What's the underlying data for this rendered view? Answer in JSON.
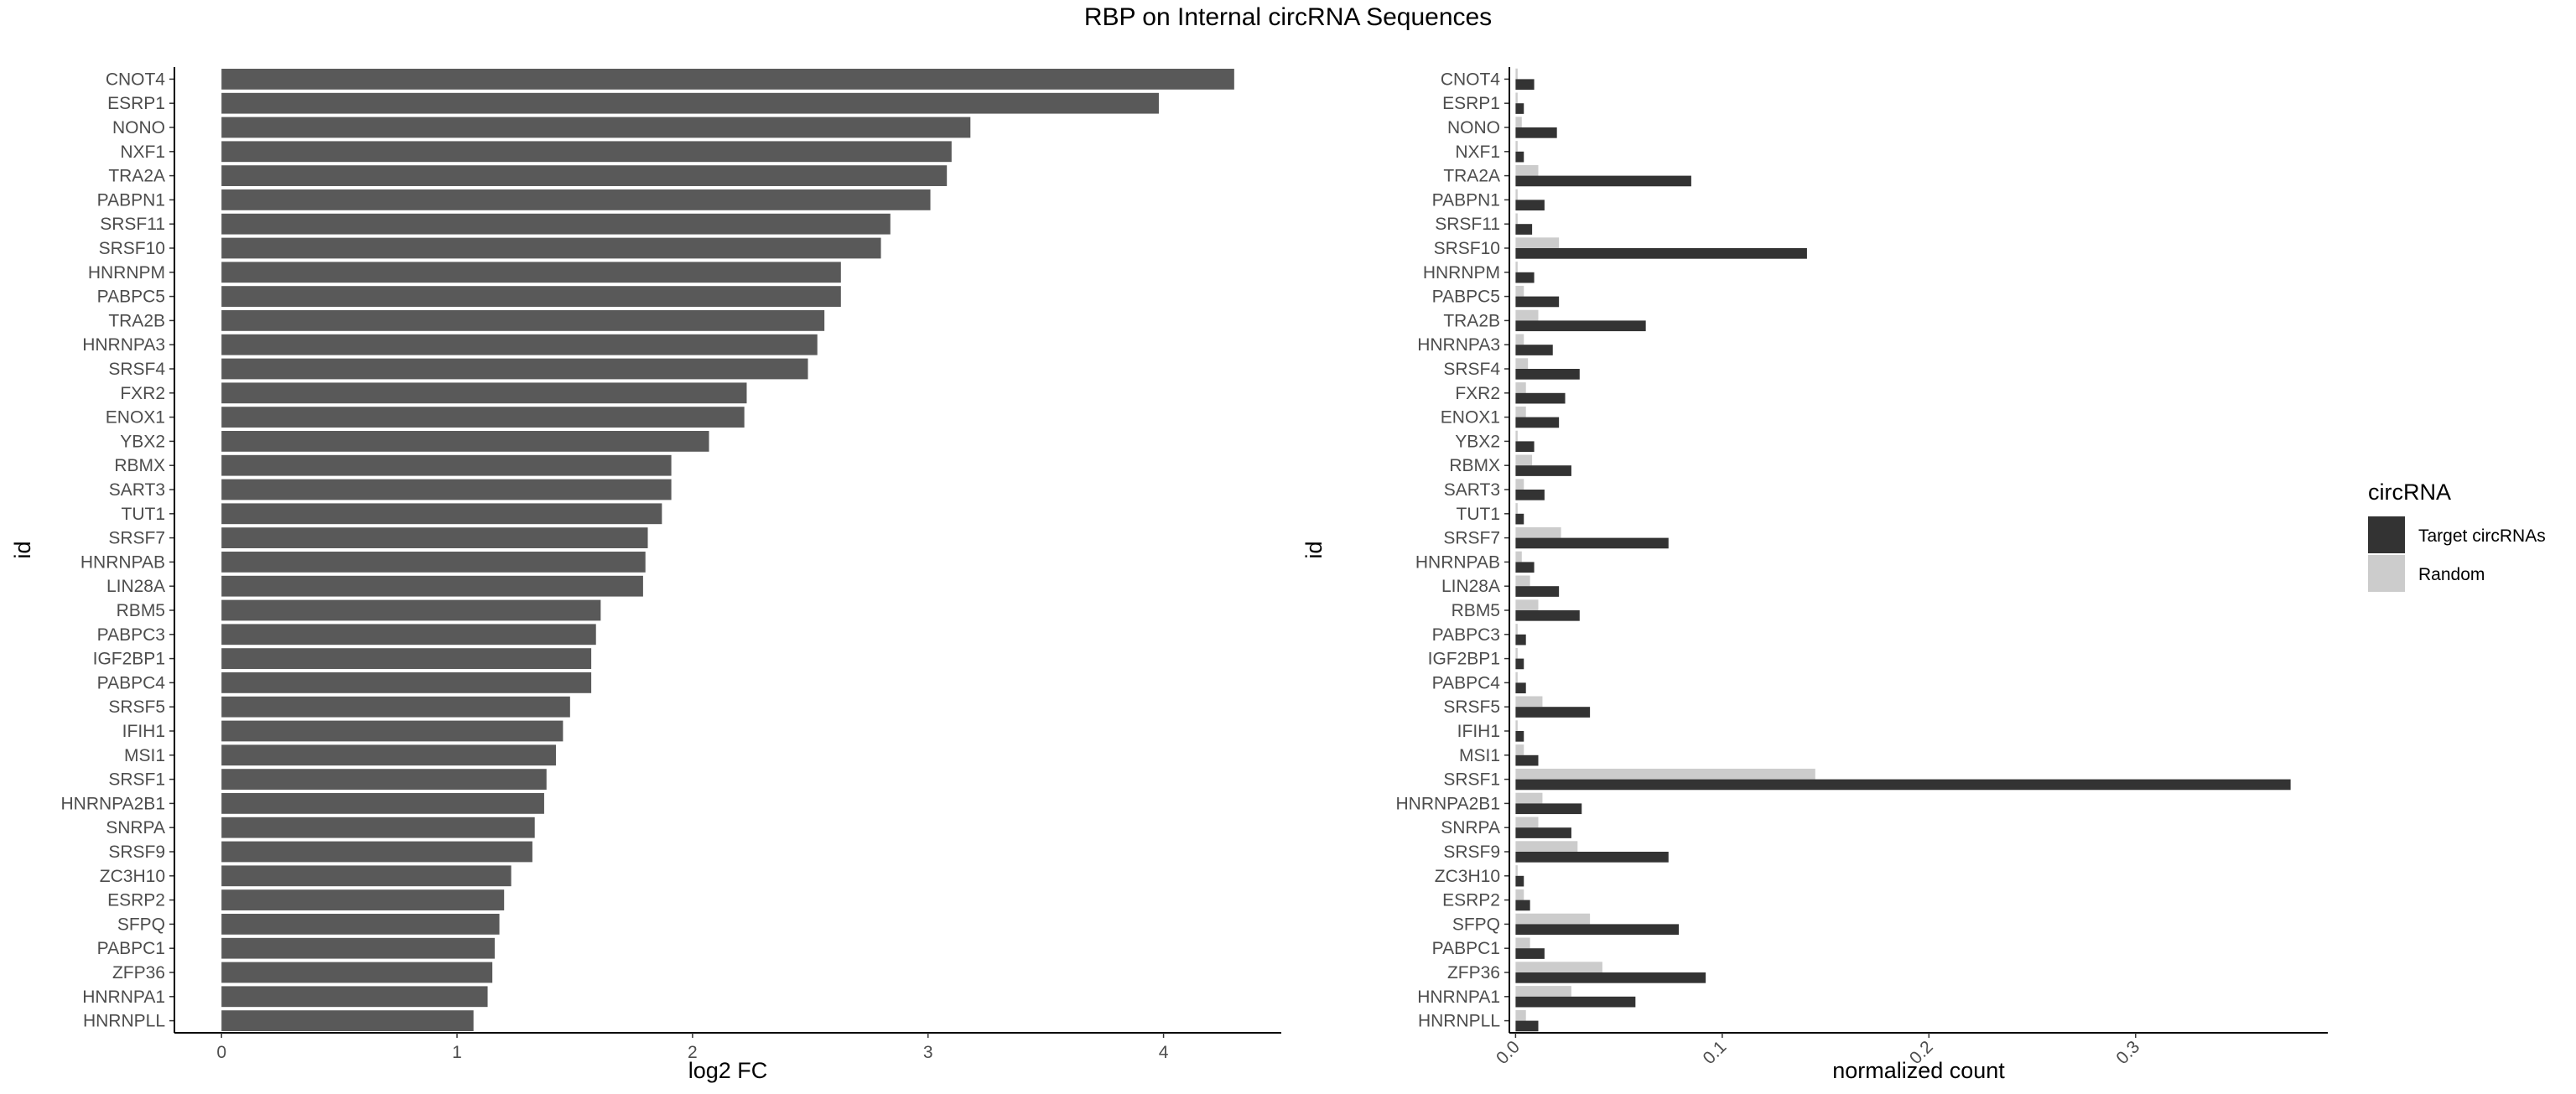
{
  "title": "RBP on Internal circRNA Sequences",
  "colors": {
    "bar": "#595959",
    "target": "#333333",
    "random": "#cccccc"
  },
  "chart_data": [
    {
      "type": "bar",
      "orientation": "horizontal",
      "xlabel": "log2 FC",
      "ylabel": "id",
      "xlim": [
        -0.2,
        4.5
      ],
      "xticks": [
        0,
        1,
        2,
        3,
        4
      ],
      "grid": false,
      "categories": [
        "CNOT4",
        "ESRP1",
        "NONO",
        "NXF1",
        "TRA2A",
        "PABPN1",
        "SRSF11",
        "SRSF10",
        "HNRNPM",
        "PABPC5",
        "TRA2B",
        "HNRNPA3",
        "SRSF4",
        "FXR2",
        "ENOX1",
        "YBX2",
        "RBMX",
        "SART3",
        "TUT1",
        "SRSF7",
        "HNRNPAB",
        "LIN28A",
        "RBM5",
        "PABPC3",
        "IGF2BP1",
        "PABPC4",
        "SRSF5",
        "IFIH1",
        "MSI1",
        "SRSF1",
        "HNRNPA2B1",
        "SNRPA",
        "SRSF9",
        "ZC3H10",
        "ESRP2",
        "SFPQ",
        "PABPC1",
        "ZFP36",
        "HNRNPA1",
        "HNRNPLL"
      ],
      "values": [
        4.3,
        3.98,
        3.18,
        3.1,
        3.08,
        3.01,
        2.84,
        2.8,
        2.63,
        2.63,
        2.56,
        2.53,
        2.49,
        2.23,
        2.22,
        2.07,
        1.91,
        1.91,
        1.87,
        1.81,
        1.8,
        1.79,
        1.61,
        1.59,
        1.57,
        1.57,
        1.48,
        1.45,
        1.42,
        1.38,
        1.37,
        1.33,
        1.32,
        1.23,
        1.2,
        1.18,
        1.16,
        1.15,
        1.13,
        1.07
      ]
    },
    {
      "type": "bar",
      "orientation": "horizontal",
      "xlabel": "normalized count",
      "ylabel": "id",
      "xlim": [
        -0.003,
        0.393
      ],
      "xticks": [
        0.0,
        0.1,
        0.2,
        0.3
      ],
      "xtick_labels": [
        "0.0",
        "0.1",
        "0.2",
        "0.3"
      ],
      "grid": false,
      "legend": {
        "title": "circRNA",
        "position": "right"
      },
      "categories": [
        "CNOT4",
        "ESRP1",
        "NONO",
        "NXF1",
        "TRA2A",
        "PABPN1",
        "SRSF11",
        "SRSF10",
        "HNRNPM",
        "PABPC5",
        "TRA2B",
        "HNRNPA3",
        "SRSF4",
        "FXR2",
        "ENOX1",
        "YBX2",
        "RBMX",
        "SART3",
        "TUT1",
        "SRSF7",
        "HNRNPAB",
        "LIN28A",
        "RBM5",
        "PABPC3",
        "IGF2BP1",
        "PABPC4",
        "SRSF5",
        "IFIH1",
        "MSI1",
        "SRSF1",
        "HNRNPA2B1",
        "SNRPA",
        "SRSF9",
        "ZC3H10",
        "ESRP2",
        "SFPQ",
        "PABPC1",
        "ZFP36",
        "HNRNPA1",
        "HNRNPLL"
      ],
      "series": [
        {
          "name": "Target circRNAs",
          "values": [
            0.009,
            0.004,
            0.02,
            0.004,
            0.085,
            0.014,
            0.008,
            0.141,
            0.009,
            0.021,
            0.063,
            0.018,
            0.031,
            0.024,
            0.021,
            0.009,
            0.027,
            0.014,
            0.004,
            0.074,
            0.009,
            0.021,
            0.031,
            0.005,
            0.004,
            0.005,
            0.036,
            0.004,
            0.011,
            0.375,
            0.032,
            0.027,
            0.074,
            0.004,
            0.007,
            0.079,
            0.014,
            0.092,
            0.058,
            0.011
          ]
        },
        {
          "name": "Random",
          "values": [
            0.001,
            0.001,
            0.003,
            0.001,
            0.011,
            0.001,
            0.001,
            0.021,
            0.001,
            0.004,
            0.011,
            0.004,
            0.006,
            0.005,
            0.005,
            0.001,
            0.008,
            0.004,
            0.001,
            0.022,
            0.003,
            0.007,
            0.011,
            0.001,
            0.001,
            0.001,
            0.013,
            0.001,
            0.004,
            0.145,
            0.013,
            0.011,
            0.03,
            0.001,
            0.004,
            0.036,
            0.007,
            0.042,
            0.027,
            0.005
          ]
        }
      ]
    }
  ]
}
